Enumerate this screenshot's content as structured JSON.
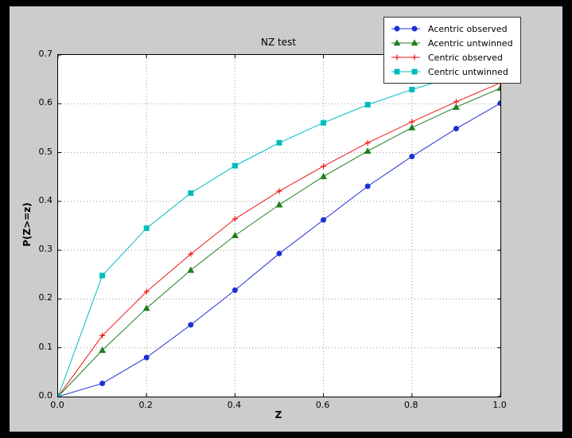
{
  "colors": {
    "outer_bg": "#000000",
    "figure_bg": "#cccccc",
    "plot_bg": "#ffffff",
    "grid": "#999999",
    "axis": "#000000"
  },
  "chart_data": {
    "type": "line",
    "title": "NZ test",
    "xlabel": "Z",
    "ylabel": "P(Z>=z)",
    "xlim": [
      0.0,
      1.0
    ],
    "ylim": [
      0.0,
      0.7
    ],
    "xticks": [
      0.0,
      0.2,
      0.4,
      0.6,
      0.8,
      1.0
    ],
    "xtick_labels": [
      "0.0",
      "0.2",
      "0.4",
      "0.6",
      "0.8",
      "1.0"
    ],
    "yticks": [
      0.0,
      0.1,
      0.2,
      0.3,
      0.4,
      0.5,
      0.6,
      0.7
    ],
    "ytick_labels": [
      "0.0",
      "0.1",
      "0.2",
      "0.3",
      "0.4",
      "0.5",
      "0.6",
      "0.7"
    ],
    "grid": "dotted",
    "legend_position": "upper right",
    "x": [
      0.0,
      0.1,
      0.2,
      0.3,
      0.4,
      0.5,
      0.6,
      0.7,
      0.8,
      0.9,
      1.0
    ],
    "series": [
      {
        "name": "Acentric observed",
        "color": "#1f2fd4",
        "marker": "circle",
        "values": [
          0.0,
          0.027,
          0.08,
          0.147,
          0.218,
          0.293,
          0.362,
          0.431,
          0.492,
          0.549,
          0.601
        ]
      },
      {
        "name": "Acentric untwinned",
        "color": "#1e7e1e",
        "marker": "triangle",
        "values": [
          0.0,
          0.095,
          0.181,
          0.259,
          0.33,
          0.393,
          0.451,
          0.503,
          0.551,
          0.593,
          0.632
        ]
      },
      {
        "name": "Centric observed",
        "color": "#f01515",
        "marker": "plus",
        "values": [
          0.0,
          0.125,
          0.215,
          0.292,
          0.364,
          0.421,
          0.472,
          0.52,
          0.563,
          0.604,
          0.643
        ]
      },
      {
        "name": "Centric untwinned",
        "color": "#00bcbc",
        "marker": "square",
        "values": [
          0.0,
          0.248,
          0.345,
          0.417,
          0.473,
          0.52,
          0.561,
          0.598,
          0.629,
          0.657,
          0.683
        ]
      }
    ]
  }
}
